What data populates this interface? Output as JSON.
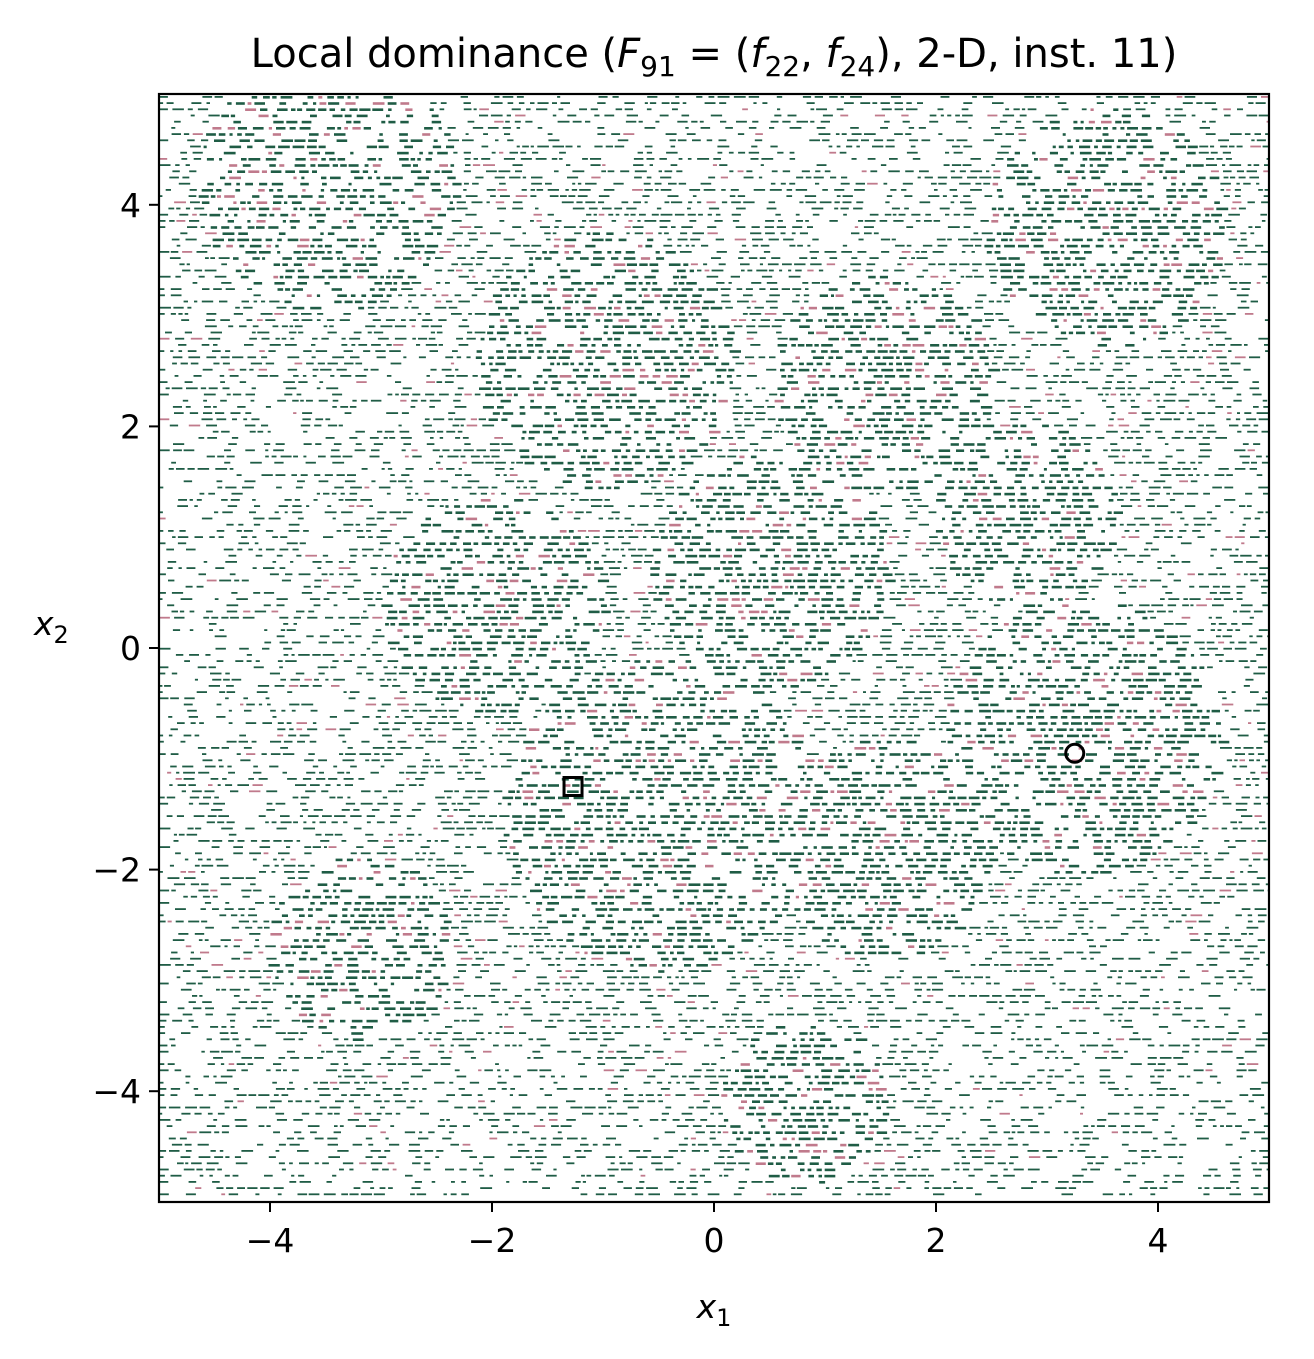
{
  "chart_data": {
    "type": "heatmap",
    "title": "Local dominance (F₉₁ = (f₂₂, f₂₄), 2-D, inst. 11)",
    "title_parts": {
      "prefix": "Local dominance (",
      "F": "F",
      "F_sub": "91",
      "eq": " = (",
      "f1": "f",
      "f1_sub": "22",
      "comma": ", ",
      "f2": "f",
      "f2_sub": "24",
      "suffix": "), 2-D, inst. 11)"
    },
    "xlabel": {
      "var": "x",
      "sub": "1"
    },
    "ylabel": {
      "var": "x",
      "sub": "2"
    },
    "xlim": [
      -5,
      5
    ],
    "ylim": [
      -5,
      5
    ],
    "xticks": [
      -4,
      -2,
      0,
      2,
      4
    ],
    "yticks": [
      -4,
      -2,
      0,
      2,
      4
    ],
    "xtick_labels": [
      "−4",
      "−2",
      "0",
      "2",
      "4"
    ],
    "ytick_labels": [
      "−4",
      "−2",
      "0",
      "2",
      "4"
    ],
    "grid": false,
    "colors": {
      "dominant": "#1f5c45",
      "secondary": "#c07a8c",
      "background": "#ffffff"
    },
    "markers": [
      {
        "shape": "square",
        "x": -1.27,
        "y": -1.25
      },
      {
        "shape": "circle",
        "x": 3.25,
        "y": -0.95
      }
    ]
  }
}
